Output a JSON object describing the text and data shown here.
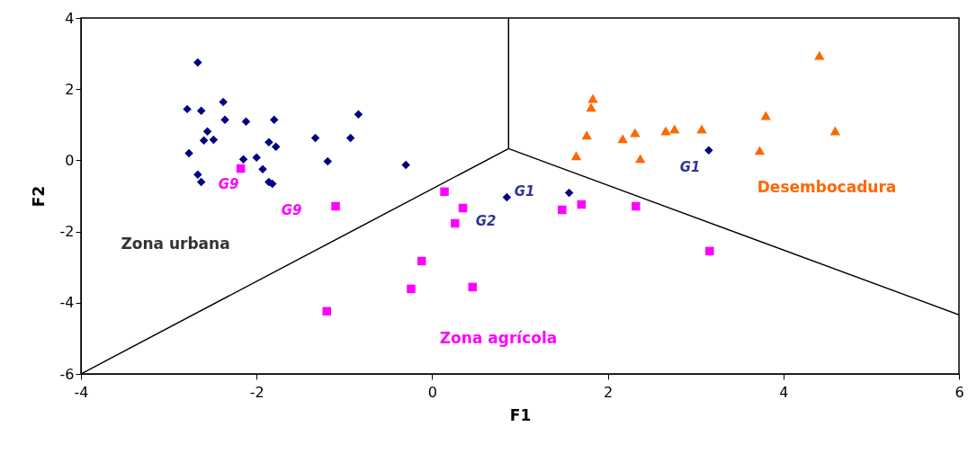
{
  "chart_data": {
    "type": "scatter",
    "xlabel": "F1",
    "ylabel": "F2",
    "xlim": [
      -4,
      6
    ],
    "ylim": [
      -6,
      4
    ],
    "xticks": [
      -4,
      -2,
      0,
      2,
      4,
      6
    ],
    "yticks": [
      -6,
      -4,
      -2,
      0,
      2,
      4
    ],
    "grid": false,
    "legend": false,
    "series": [
      {
        "marker": "diamond",
        "color": "#000080",
        "x": [
          -2.67,
          -2.79,
          -2.63,
          -2.38,
          -2.36,
          -2.12,
          -1.8,
          -2.56,
          -2.6,
          -2.49,
          -2.77,
          -2.67,
          -2.63,
          -2.15,
          -2.0,
          -1.93,
          -1.86,
          -1.82,
          -1.86,
          -1.78,
          -1.33,
          -1.19,
          -0.93,
          -0.84,
          -0.3,
          0.85,
          1.56,
          3.15
        ],
        "values": [
          2.75,
          1.44,
          1.39,
          1.64,
          1.14,
          1.09,
          1.14,
          0.81,
          0.56,
          0.58,
          0.2,
          -0.4,
          -0.61,
          0.03,
          0.08,
          -0.25,
          -0.61,
          -0.66,
          0.51,
          0.38,
          0.63,
          -0.03,
          0.63,
          1.29,
          -0.13,
          -1.04,
          -0.91,
          0.28
        ]
      },
      {
        "marker": "square",
        "color": "#ff00ff",
        "x": [
          -2.18,
          -1.1,
          0.14,
          0.35,
          0.26,
          -0.12,
          -0.24,
          0.46,
          -1.2,
          1.48,
          1.7,
          2.32,
          3.16
        ],
        "values": [
          -0.23,
          -1.29,
          -0.88,
          -1.34,
          -1.77,
          -2.83,
          -3.61,
          -3.56,
          -4.24,
          -1.39,
          -1.24,
          -1.29,
          -2.55
        ]
      },
      {
        "marker": "triangle",
        "color": "#ff6600",
        "x": [
          1.83,
          1.81,
          1.76,
          1.64,
          2.17,
          2.31,
          2.37,
          2.66,
          2.76,
          3.07,
          3.8,
          4.41,
          4.59,
          3.73
        ],
        "values": [
          1.74,
          1.49,
          0.71,
          0.13,
          0.61,
          0.78,
          0.05,
          0.83,
          0.88,
          0.88,
          1.26,
          2.95,
          0.83,
          0.28
        ]
      },
      {
        "type": "line",
        "color": "#000000",
        "x": [
          0.87,
          0.87
        ],
        "values": [
          4,
          0.33
        ]
      },
      {
        "type": "line",
        "color": "#000000",
        "x": [
          -4,
          0.87
        ],
        "values": [
          -6,
          0.33
        ]
      },
      {
        "type": "line",
        "color": "#000000",
        "x": [
          0.87,
          6
        ],
        "values": [
          0.33,
          -4.34
        ]
      }
    ],
    "annotations": [
      "Zona urbana",
      "Desembocadura",
      "Zona agrícola",
      "G9",
      "G9",
      "G1",
      "G2",
      "G1"
    ]
  }
}
